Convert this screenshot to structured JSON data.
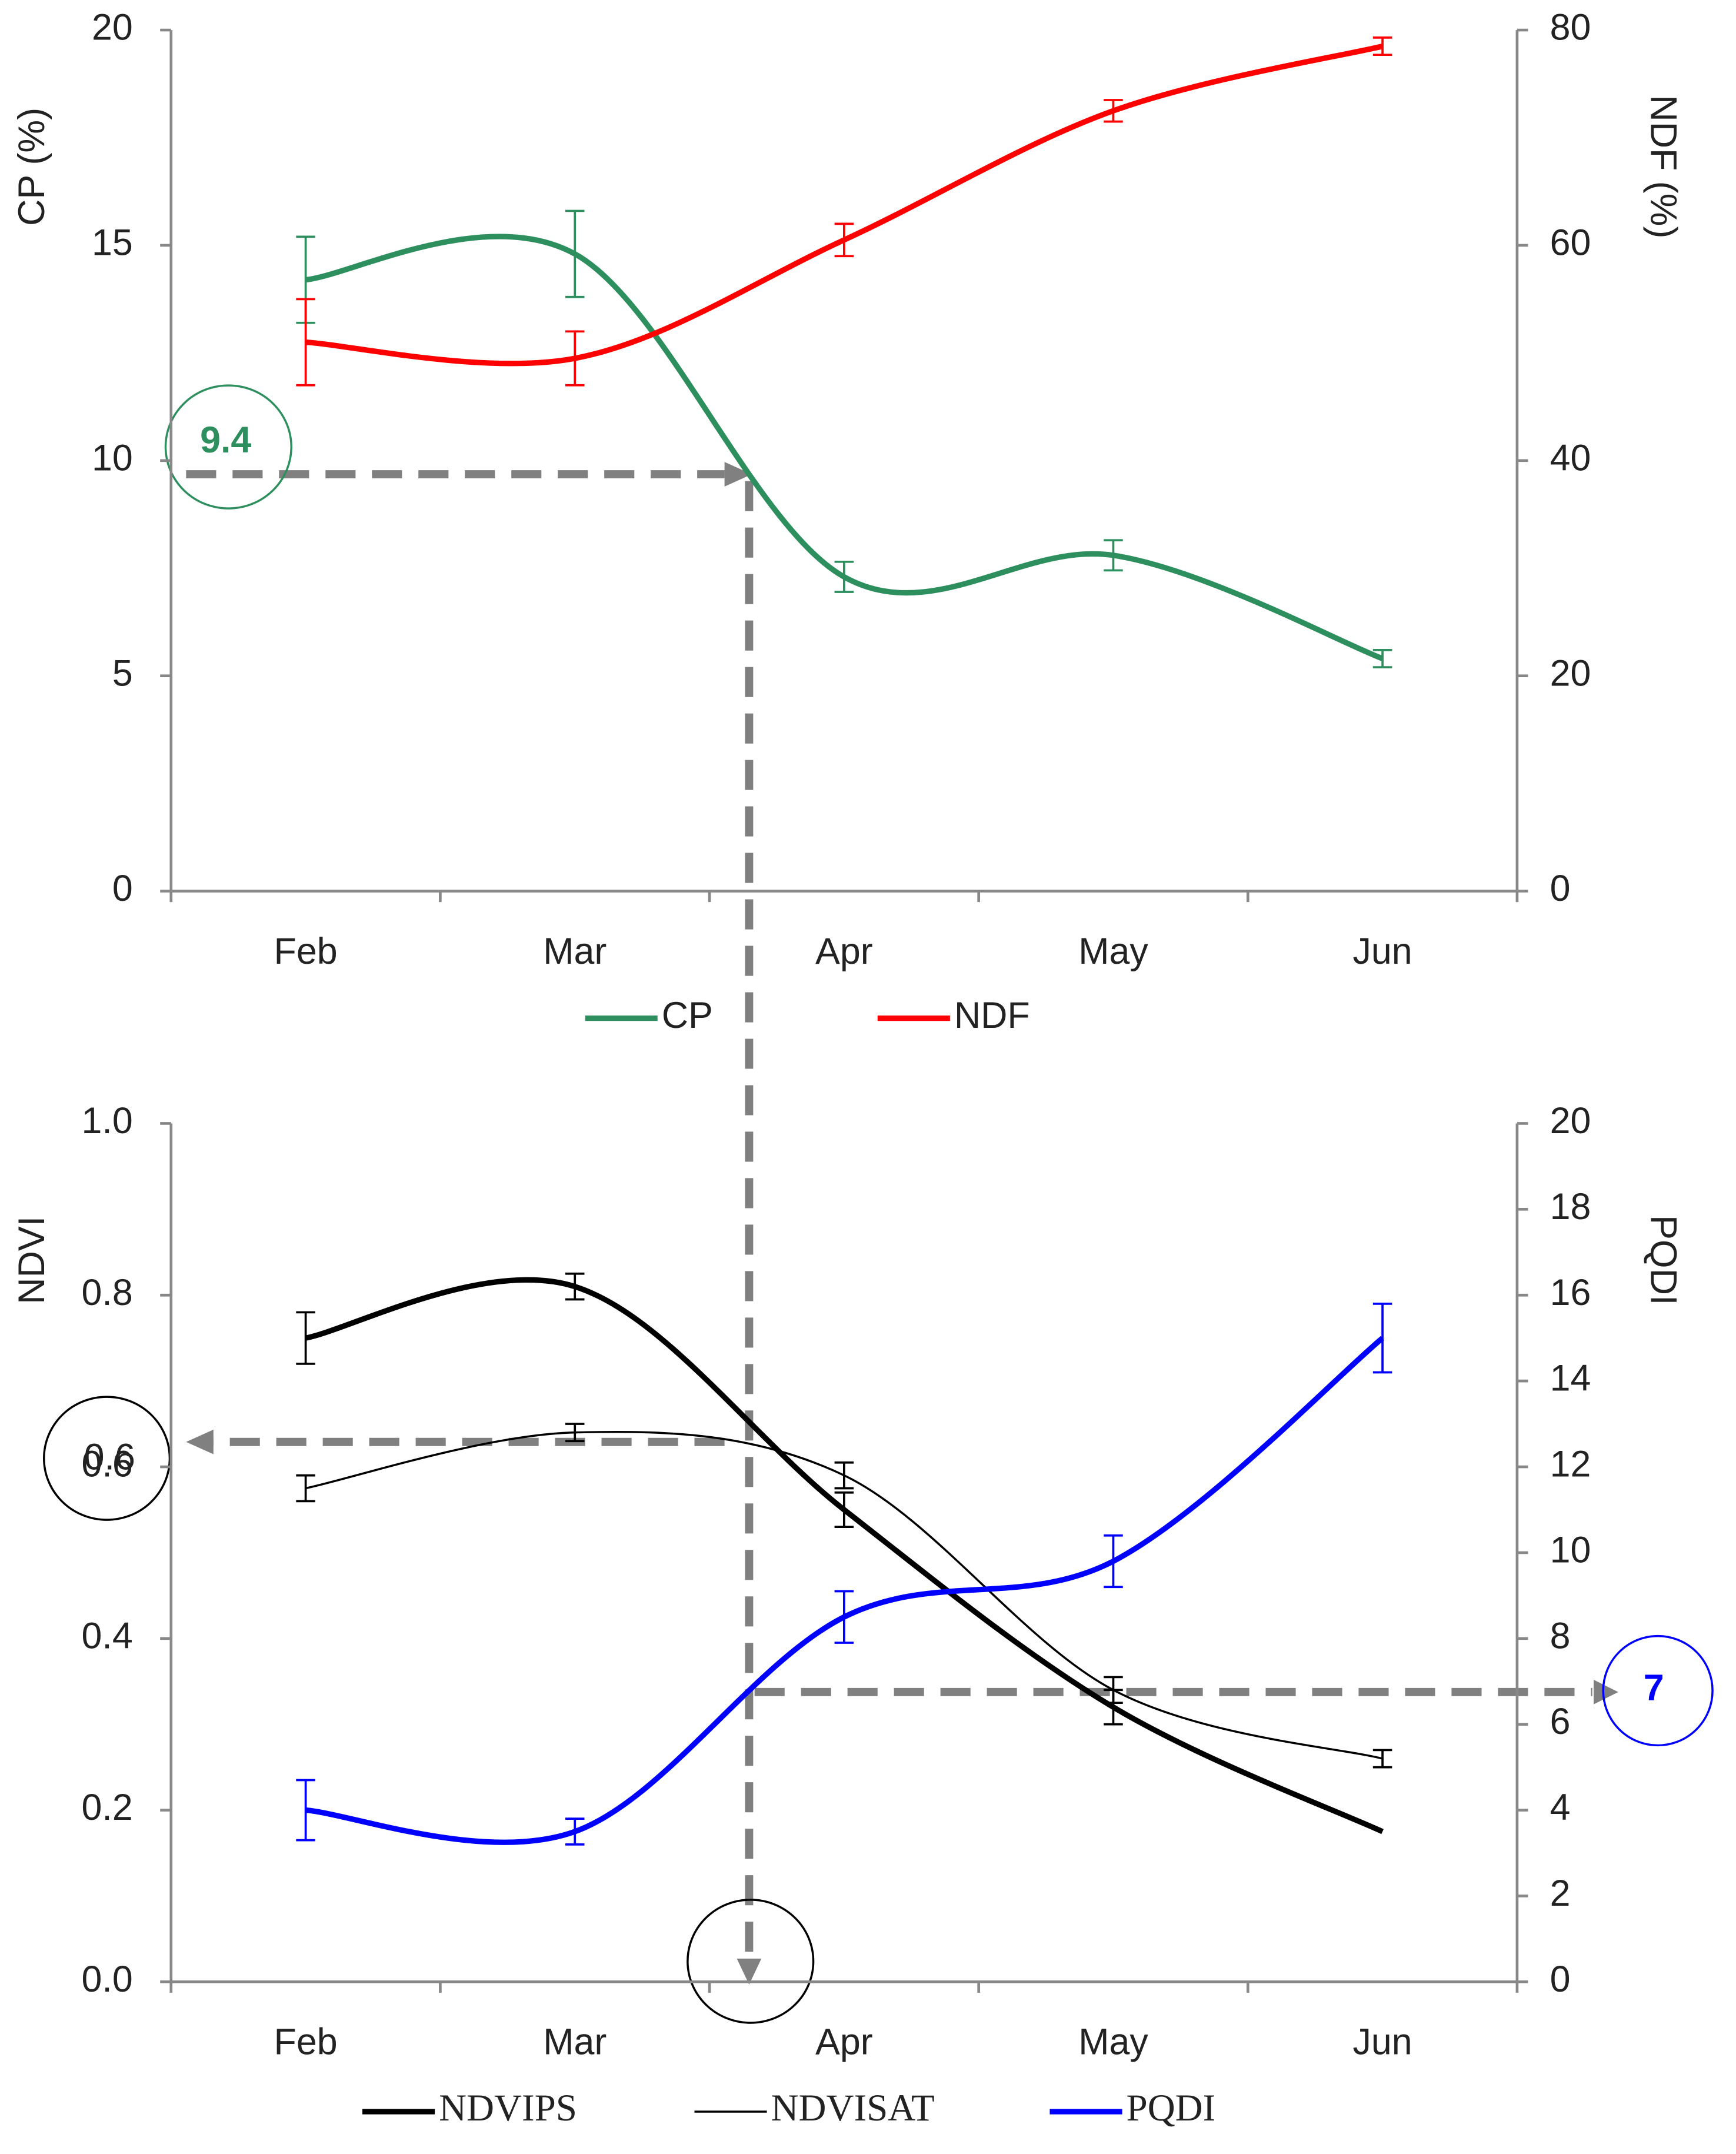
{
  "chart_data": [
    {
      "type": "line",
      "categories": [
        "Feb",
        "Mar",
        "Apr",
        "May",
        "Jun"
      ],
      "ylabel": "CP (%)",
      "y2label": "NDF (%)",
      "ylim": [
        0,
        20
      ],
      "yticks": [
        0,
        5,
        10,
        15,
        20
      ],
      "y2lim": [
        0,
        80
      ],
      "y2ticks": [
        0,
        20,
        40,
        60,
        80
      ],
      "series": [
        {
          "name": "CP",
          "color": "#2e8f5e",
          "values": [
            14.2,
            14.8,
            7.3,
            7.8,
            5.4
          ],
          "errors": [
            1.0,
            1.0,
            0.35,
            0.35,
            0.2
          ]
        },
        {
          "name": "NDF",
          "color": "#ff0000",
          "axis": "y2",
          "values": [
            51,
            49.5,
            60.5,
            72.5,
            78.5
          ],
          "errors": [
            4,
            2.5,
            1.5,
            1,
            0.8
          ]
        }
      ],
      "annotations": [
        "9.4"
      ]
    },
    {
      "type": "line",
      "categories": [
        "Feb",
        "Mar",
        "Apr",
        "May",
        "Jun"
      ],
      "ylabel": "NDVI",
      "y2label": "PQDI",
      "ylim": [
        0,
        1
      ],
      "yticks": [
        {
          "value": 0,
          "label": "0.0"
        },
        0.2,
        0.4,
        0.6,
        0.8,
        {
          "value": 1,
          "label": "1.0"
        }
      ],
      "y2lim": [
        0,
        20
      ],
      "y2ticks": [
        0,
        2,
        4,
        6,
        8,
        10,
        12,
        14,
        16,
        18,
        20
      ],
      "series": [
        {
          "name": "NDVIPS",
          "color": "#000000",
          "values": [
            0.75,
            0.81,
            0.55,
            0.32,
            0.175
          ],
          "errors": [
            0.03,
            0.015,
            0.02,
            0.02,
            null
          ]
        },
        {
          "name": "NDVISAT",
          "color": "#000000",
          "values": [
            0.575,
            0.64,
            0.59,
            0.34,
            0.26
          ],
          "errors": [
            0.015,
            0.01,
            0.015,
            0.015,
            0.01
          ]
        },
        {
          "name": "PQDI",
          "color": "#0000ff",
          "axis": "y2",
          "values": [
            4,
            3.5,
            8.5,
            9.8,
            15
          ],
          "errors": [
            0.7,
            0.3,
            0.6,
            0.6,
            0.8
          ]
        }
      ],
      "annotations": [
        "0.6",
        "7"
      ]
    }
  ]
}
